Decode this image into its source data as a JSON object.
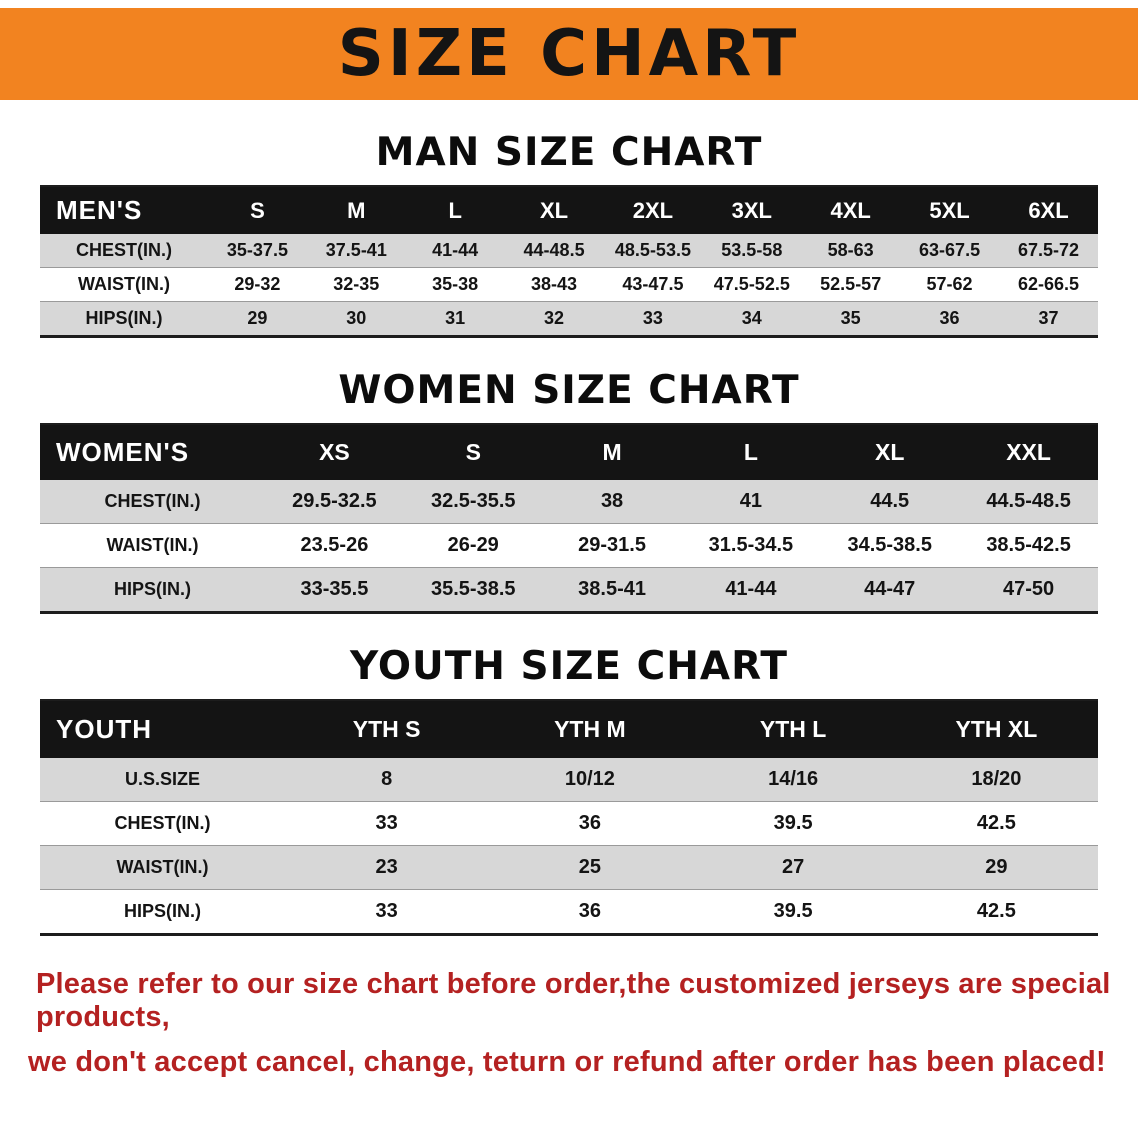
{
  "banner": {
    "title": "SIZE CHART"
  },
  "men": {
    "heading": "MAN SIZE CHART",
    "table": {
      "header": [
        "MEN'S",
        "S",
        "M",
        "L",
        "XL",
        "2XL",
        "3XL",
        "4XL",
        "5XL",
        "6XL"
      ],
      "rows": [
        {
          "label": "CHEST(IN.)",
          "values": [
            "35-37.5",
            "37.5-41",
            "41-44",
            "44-48.5",
            "48.5-53.5",
            "53.5-58",
            "58-63",
            "63-67.5",
            "67.5-72"
          ]
        },
        {
          "label": "WAIST(IN.)",
          "values": [
            "29-32",
            "32-35",
            "35-38",
            "38-43",
            "43-47.5",
            "47.5-52.5",
            "52.5-57",
            "57-62",
            "62-66.5"
          ]
        },
        {
          "label": "HIPS(IN.)",
          "values": [
            "29",
            "30",
            "31",
            "32",
            "33",
            "34",
            "35",
            "36",
            "37"
          ]
        }
      ]
    }
  },
  "women": {
    "heading": "WOMEN SIZE CHART",
    "table": {
      "header": [
        "WOMEN'S",
        "XS",
        "S",
        "M",
        "L",
        "XL",
        "XXL"
      ],
      "rows": [
        {
          "label": "CHEST(IN.)",
          "values": [
            "29.5-32.5",
            "32.5-35.5",
            "38",
            "41",
            "44.5",
            "44.5-48.5"
          ]
        },
        {
          "label": "WAIST(IN.)",
          "values": [
            "23.5-26",
            "26-29",
            "29-31.5",
            "31.5-34.5",
            "34.5-38.5",
            "38.5-42.5"
          ]
        },
        {
          "label": "HIPS(IN.)",
          "values": [
            "33-35.5",
            "35.5-38.5",
            "38.5-41",
            "41-44",
            "44-47",
            "47-50"
          ]
        }
      ]
    }
  },
  "youth": {
    "heading": "YOUTH SIZE CHART",
    "table": {
      "header": [
        "YOUTH",
        "YTH S",
        "YTH M",
        "YTH L",
        "YTH XL"
      ],
      "rows": [
        {
          "label": "U.S.SIZE",
          "values": [
            "8",
            "10/12",
            "14/16",
            "18/20"
          ]
        },
        {
          "label": "CHEST(IN.)",
          "values": [
            "33",
            "36",
            "39.5",
            "42.5"
          ]
        },
        {
          "label": "WAIST(IN.)",
          "values": [
            "23",
            "25",
            "27",
            "29"
          ]
        },
        {
          "label": "HIPS(IN.)",
          "values": [
            "33",
            "36",
            "39.5",
            "42.5"
          ]
        }
      ]
    }
  },
  "footer": {
    "line1": "Please refer to our size chart before order,the customized jerseys are special products,",
    "line2": "we don't accept cancel, change, teturn or refund after order has been placed!"
  },
  "colors": {
    "banner_orange": "#f28320",
    "header_black": "#141414",
    "row_gray": "#d7d7d7",
    "footer_red": "#b42121"
  }
}
